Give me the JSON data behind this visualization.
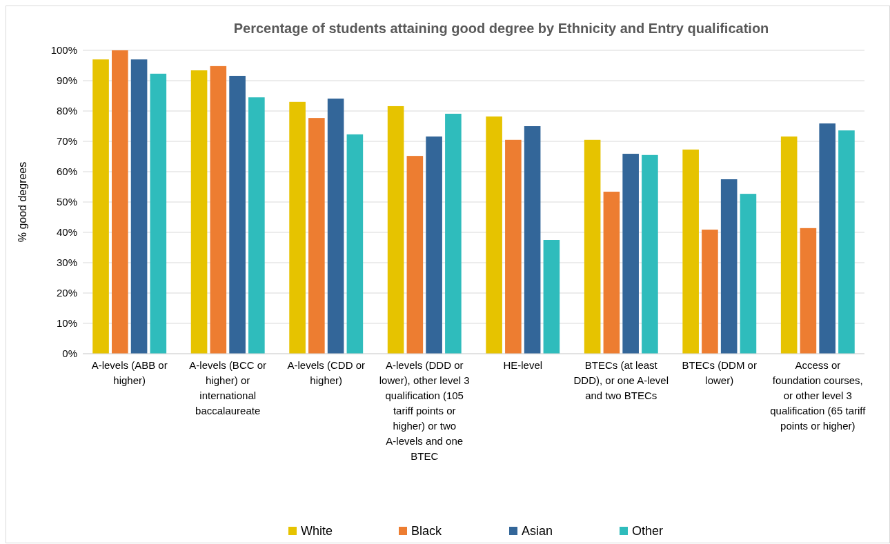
{
  "chart_data": {
    "type": "bar",
    "title": "Percentage of students attaining good degree by Ethnicity and Entry qualification",
    "ylabel": "% good degrees",
    "categories": [
      "A-levels (ABB or higher)",
      "A-levels (BCC or higher) or international baccalaureate",
      "A-levels (CDD or higher)",
      "A-levels (DDD or lower), other level 3 qualification (105 tariff points or higher) or two A-levels and one BTEC",
      "HE-level",
      "BTECs (at least DDD), or one A-level and two BTECs",
      "BTECs (DDM or lower)",
      "Access or foundation courses, or other level 3 qualification (65 tariff points or higher)"
    ],
    "series": [
      {
        "name": "White",
        "color": "#e6c300",
        "values": [
          97,
          93.4,
          83,
          81.6,
          78.2,
          70.5,
          67.3,
          71.6
        ]
      },
      {
        "name": "Black",
        "color": "#ed7d31",
        "values": [
          100,
          94.8,
          77.7,
          65.2,
          70.5,
          53.4,
          40.9,
          41.4
        ]
      },
      {
        "name": "Asian",
        "color": "#336699",
        "values": [
          97,
          91.6,
          84.1,
          71.6,
          75,
          65.9,
          57.5,
          75.9
        ]
      },
      {
        "name": "Other",
        "color": "#2fbcbc",
        "values": [
          92.3,
          84.5,
          72.3,
          79.1,
          37.5,
          65.5,
          52.7,
          73.6
        ]
      }
    ],
    "ylim": [
      0,
      100
    ],
    "yticks": [
      {
        "value": 0,
        "label": "0%"
      },
      {
        "value": 10,
        "label": "10%"
      },
      {
        "value": 20,
        "label": "20%"
      },
      {
        "value": 30,
        "label": "30%"
      },
      {
        "value": 40,
        "label": "40%"
      },
      {
        "value": 50,
        "label": "50%"
      },
      {
        "value": 60,
        "label": "60%"
      },
      {
        "value": 70,
        "label": "70%"
      },
      {
        "value": 80,
        "label": "80%"
      },
      {
        "value": 90,
        "label": "90%"
      },
      {
        "value": 100,
        "label": "100%"
      }
    ],
    "grid": "y",
    "legend": "bottom"
  }
}
